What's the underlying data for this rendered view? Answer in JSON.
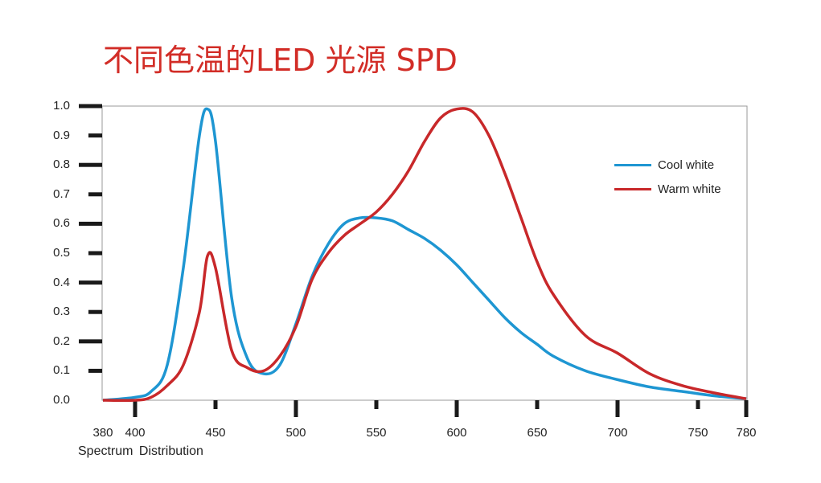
{
  "chart_data": {
    "type": "line",
    "title": "不同色温的LED 光源 SPD",
    "xlabel": "Spectrum  Distribution",
    "ylabel": "",
    "xlim": [
      380,
      780
    ],
    "ylim": [
      0.0,
      1.0
    ],
    "x_ticks": [
      "380",
      "400",
      "450",
      "500",
      "550",
      "600",
      "650",
      "700",
      "750",
      "780"
    ],
    "y_ticks": [
      "0.0",
      "0.1",
      "0.2",
      "0.3",
      "0.4",
      "0.5",
      "0.6",
      "0.7",
      "0.8",
      "0.9",
      "1.0"
    ],
    "grid": false,
    "legend_position": "upper right",
    "x": [
      380,
      400,
      410,
      420,
      430,
      440,
      445,
      450,
      460,
      470,
      480,
      490,
      500,
      510,
      520,
      530,
      540,
      550,
      560,
      570,
      580,
      590,
      600,
      610,
      620,
      630,
      640,
      650,
      660,
      680,
      700,
      720,
      740,
      760,
      780
    ],
    "series": [
      {
        "name": "Cool white",
        "color": "#1e96d2",
        "values": [
          0.0,
          0.01,
          0.03,
          0.12,
          0.45,
          0.9,
          0.99,
          0.88,
          0.35,
          0.14,
          0.09,
          0.12,
          0.26,
          0.42,
          0.53,
          0.6,
          0.62,
          0.62,
          0.61,
          0.58,
          0.55,
          0.51,
          0.46,
          0.4,
          0.34,
          0.28,
          0.23,
          0.19,
          0.15,
          0.1,
          0.07,
          0.045,
          0.03,
          0.015,
          0.005
        ]
      },
      {
        "name": "Warm white",
        "color": "#c8282a",
        "values": [
          0.0,
          0.0,
          0.01,
          0.05,
          0.12,
          0.3,
          0.49,
          0.45,
          0.17,
          0.11,
          0.1,
          0.15,
          0.25,
          0.41,
          0.5,
          0.56,
          0.6,
          0.64,
          0.7,
          0.78,
          0.88,
          0.96,
          0.99,
          0.98,
          0.9,
          0.77,
          0.62,
          0.47,
          0.36,
          0.22,
          0.16,
          0.09,
          0.05,
          0.025,
          0.005
        ]
      }
    ]
  },
  "legend": {
    "items": [
      {
        "label": "Cool white",
        "color": "#1e96d2"
      },
      {
        "label": "Warm white",
        "color": "#c8282a"
      }
    ]
  }
}
